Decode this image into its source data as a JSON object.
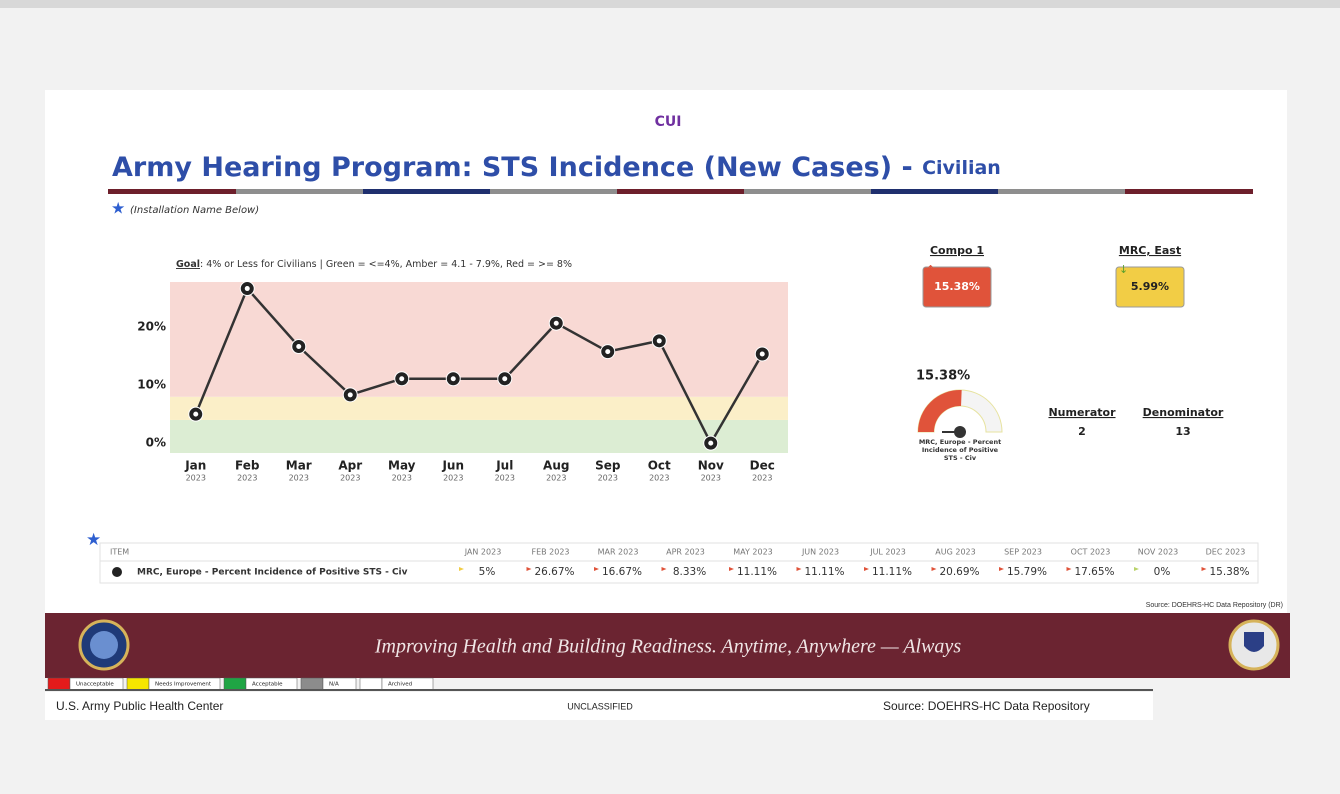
{
  "header": {
    "marking": "CUI",
    "title": "Army Hearing Program:  STS Incidence (New Cases) - ",
    "title_suffix": "Civilian",
    "installation_note": "(Installation Name Below)"
  },
  "chart_data": {
    "type": "line",
    "goal_label": "Goal",
    "goal_text": ": 4% or Less for Civilians  |  Green = <=4%, Amber = 4.1 - 7.9%, Red = >= 8%",
    "categories": [
      "Jan",
      "Feb",
      "Mar",
      "Apr",
      "May",
      "Jun",
      "Jul",
      "Aug",
      "Sep",
      "Oct",
      "Nov",
      "Dec"
    ],
    "category_years": [
      "2023",
      "2023",
      "2023",
      "2023",
      "2023",
      "2023",
      "2023",
      "2023",
      "2023",
      "2023",
      "2023",
      "2023"
    ],
    "series": [
      {
        "name": "MRC, Europe - Percent Incidence of Positive STS - Civ",
        "color": "#333333",
        "values": [
          5,
          26.67,
          16.67,
          8.33,
          11.11,
          11.11,
          11.11,
          20.69,
          15.79,
          17.65,
          0,
          15.38
        ]
      }
    ],
    "ylim": [
      -1.7,
      27.8
    ],
    "yticks": [
      {
        "value": 0,
        "label": "0%"
      },
      {
        "value": 10,
        "label": "10%"
      },
      {
        "value": 20,
        "label": "20%"
      }
    ],
    "thresholds": [
      4,
      8
    ],
    "band_colors": [
      "#dcedd3",
      "#fbefc8",
      "#f8d9d4"
    ]
  },
  "kpis": [
    {
      "label": "Compo 1",
      "value": "15.38%",
      "color": "#e0533a"
    },
    {
      "label": "MRC, East",
      "value": "5.99%",
      "color": "#f2cd45"
    }
  ],
  "gauge": {
    "value_label": "15.38%",
    "value": 15.38,
    "range": [
      0,
      30
    ],
    "caption": [
      "MRC, Europe - Percent",
      "Incidence of Positive",
      "STS - Civ"
    ],
    "numerator_label": "Numerator",
    "numerator": "2",
    "denominator_label": "Denominator",
    "denominator": "13"
  },
  "table": {
    "header": [
      "ITEM",
      "JAN 2023",
      "FEB 2023",
      "MAR 2023",
      "APR 2023",
      "MAY 2023",
      "JUN 2023",
      "JUL 2023",
      "AUG 2023",
      "SEP 2023",
      "OCT 2023",
      "NOV 2023",
      "DEC 2023"
    ],
    "rows": [
      [
        "MRC, Europe - Percent Incidence of Positive STS - Civ",
        "5%",
        "26.67%",
        "16.67%",
        "8.33%",
        "11.11%",
        "11.11%",
        "11.11%",
        "20.69%",
        "15.79%",
        "17.65%",
        "0%",
        "15.38%"
      ]
    ],
    "flag_colors": [
      "#f2cd45",
      "#e0533a",
      "#e0533a",
      "#e0533a",
      "#e0533a",
      "#e0533a",
      "#e0533a",
      "#e0533a",
      "#e0533a",
      "#e0533a",
      "#b9d36a",
      "#e0533a"
    ]
  },
  "footer": {
    "source_small": "Source:  DOEHRS-HC Data Repository (DR)",
    "motto": "Improving Health and Building Readiness. Anytime, Anywhere — Always",
    "legend": [
      {
        "label": "Unacceptable",
        "color": "#e31b1b"
      },
      {
        "label": "Needs Improvement",
        "color": "#f5e600"
      },
      {
        "label": "Acceptable",
        "color": "#1fa544"
      },
      {
        "label": "N/A",
        "color": "#8c8c8c"
      },
      {
        "label": "Archived",
        "color": "#ffffff"
      }
    ],
    "org": "U.S. Army Public Health Center",
    "classification": "UNCLASSIFIED",
    "source": "Source:  DOEHRS-HC Data Repository"
  }
}
